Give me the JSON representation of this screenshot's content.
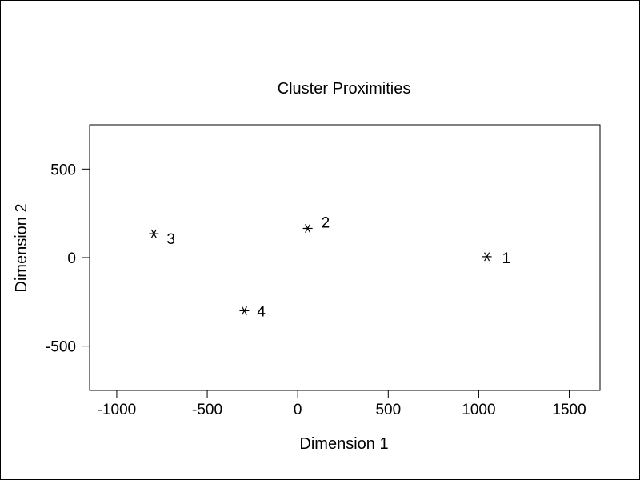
{
  "chart_data": {
    "type": "scatter",
    "title": "Cluster Proximities",
    "xlabel": "Dimension 1",
    "ylabel": "Dimension 2",
    "xlim": [
      -1150,
      1670
    ],
    "ylim": [
      -750,
      750
    ],
    "xticks": [
      -1000,
      -500,
      0,
      500,
      1000,
      1500
    ],
    "yticks": [
      -500,
      0,
      500
    ],
    "marker": "asterisk",
    "grid": false,
    "points": [
      {
        "label": "1",
        "x": 1045,
        "y": 5
      },
      {
        "label": "2",
        "x": 55,
        "y": 165
      },
      {
        "label": "3",
        "x": -795,
        "y": 135
      },
      {
        "label": "4",
        "x": -295,
        "y": -300
      }
    ],
    "colors": {
      "ink": "#000000",
      "background": "#ffffff"
    }
  }
}
